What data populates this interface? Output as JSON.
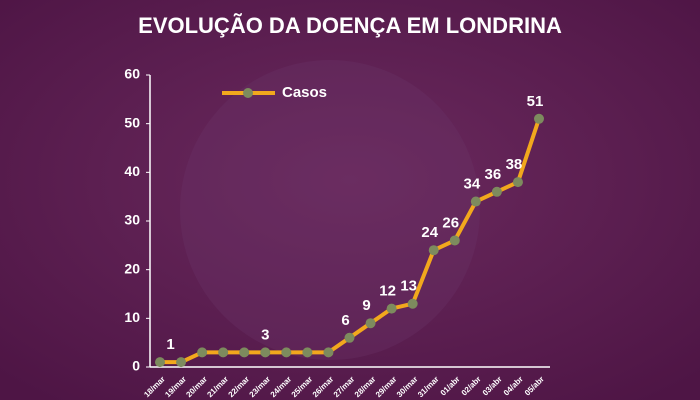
{
  "chart_data": {
    "type": "line",
    "title": "EVOLUÇÃO DA DOENÇA EM LONDRINA",
    "categories": [
      "18/mar",
      "19/mar",
      "20/mar",
      "21/mar",
      "22/mar",
      "23/mar",
      "24/mar",
      "25/mar",
      "26/mar",
      "27/mar",
      "28/mar",
      "29/mar",
      "30/mar",
      "31/mar",
      "01/abr",
      "02/abr",
      "03/abr",
      "04/abr",
      "05/abr"
    ],
    "series": [
      {
        "name": "Casos",
        "color": "#f2a81d",
        "marker_color": "#7d8b5e",
        "values": [
          1,
          1,
          3,
          3,
          3,
          3,
          3,
          3,
          3,
          6,
          9,
          12,
          13,
          24,
          26,
          34,
          36,
          38,
          51
        ]
      }
    ],
    "ylim": [
      0,
      60
    ],
    "yticks": [
      0,
      10,
      20,
      30,
      40,
      50,
      60
    ],
    "grid": false,
    "legend": "upper left"
  }
}
